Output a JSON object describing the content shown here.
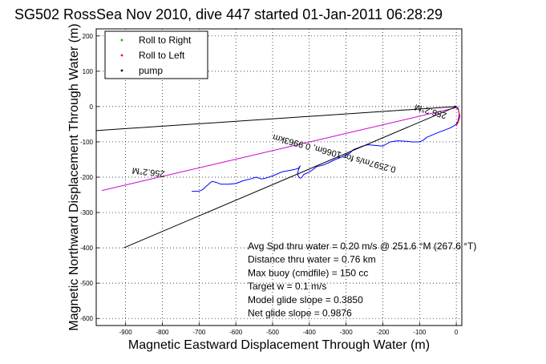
{
  "chart_data": {
    "type": "line",
    "title": "SG502 RossSea Nov 2010, dive 447 started 01-Jan-2011 06:28:29",
    "xlabel": "Magnetic Eastward Displacement Through Water (m)",
    "ylabel": "Magnetic Northward Displacement Through Water (m)",
    "xlim": [
      -980,
      15
    ],
    "ylim": [
      -620,
      220
    ],
    "xticks": [
      -900,
      -800,
      -700,
      -600,
      -500,
      -400,
      -300,
      -200,
      -100,
      0
    ],
    "yticks": [
      200,
      100,
      0,
      -100,
      -200,
      -300,
      -400,
      -500,
      -600
    ],
    "grid": true,
    "legend_position": "top-left",
    "legend": [
      {
        "label": "Roll to Right",
        "color": "#00c000",
        "marker": "dot"
      },
      {
        "label": "Roll to Left",
        "color": "#ff0000",
        "marker": "dot"
      },
      {
        "label": "pump",
        "color": "#000000",
        "marker": "dot"
      }
    ],
    "series": [
      {
        "color": "#0000ff",
        "style": "solid",
        "x": [
          -720,
          -700,
          -690,
          -680,
          -665,
          -655,
          -640,
          -620,
          -600,
          -580,
          -560,
          -545,
          -530,
          -520,
          -505,
          -490,
          -475,
          -460,
          -450,
          -440,
          -430,
          -425,
          -430,
          -432,
          -428,
          -425,
          -420,
          -415,
          -405,
          -395,
          -380,
          -360,
          -345,
          -330,
          -310,
          -290,
          -280,
          -270,
          -255,
          -240,
          -220,
          -200,
          -180,
          -160,
          -140,
          -120,
          -100,
          -90,
          -80,
          -60,
          -40,
          -20,
          -10,
          0,
          5,
          8,
          5,
          0,
          -5
        ],
        "y": [
          -240,
          -240,
          -235,
          -225,
          -212,
          -214,
          -220,
          -220,
          -218,
          -210,
          -205,
          -200,
          -205,
          -203,
          -198,
          -192,
          -185,
          -182,
          -180,
          -178,
          -175,
          -168,
          -180,
          -192,
          -200,
          -203,
          -200,
          -192,
          -188,
          -182,
          -170,
          -165,
          -158,
          -150,
          -142,
          -132,
          -122,
          -118,
          -112,
          -108,
          -110,
          -112,
          -100,
          -97,
          -98,
          -100,
          -100,
          -95,
          -87,
          -78,
          -70,
          -62,
          -57,
          -50,
          -40,
          -20,
          -5,
          0,
          2
        ]
      },
      {
        "color": "#cc00cc",
        "style": "solid",
        "x": [
          -965,
          0
        ],
        "y": [
          -238,
          -3
        ]
      },
      {
        "color": "#ff0000",
        "style": "solid",
        "x": [
          -5,
          5,
          10,
          5,
          0
        ],
        "y": [
          0,
          -8,
          -28,
          -45,
          -55
        ]
      },
      {
        "color": "#000000",
        "style": "solid",
        "x": [
          -980,
          0
        ],
        "y": [
          -68,
          0
        ]
      },
      {
        "color": "#000000",
        "style": "solid",
        "x": [
          -905,
          0
        ],
        "y": [
          -400,
          0
        ]
      }
    ],
    "annotations": [
      {
        "text": "256.2°M",
        "x": -837,
        "y": -178,
        "rotation_deg": 186
      },
      {
        "text": "0.2597m/s for 1066m, 0.9963km",
        "x": -330,
        "y": -125,
        "rotation_deg": 195
      },
      {
        "text": "256.2°M",
        "x": -68,
        "y": -6,
        "rotation_deg": 196
      }
    ],
    "info_lines": [
      "Avg Spd thru water =  0.20 m/s @ 251.6    °M (267.6 °T)",
      "Distance thru water =  0.76 km",
      "Max buoy (cmdfile) = 150 cc",
      "Target w = 0.1 m/s",
      "Model glide slope = 0.3850",
      "Net glide slope = 0.9876"
    ]
  }
}
